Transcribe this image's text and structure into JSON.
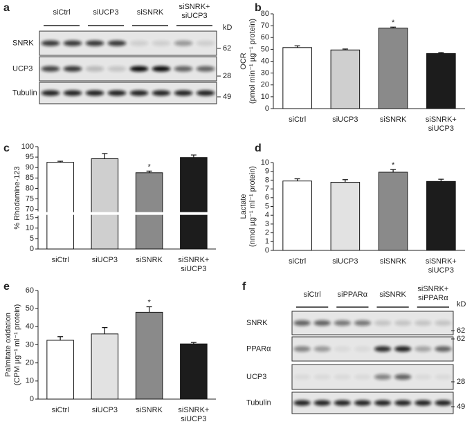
{
  "blots": [
    {
      "panel_label": "a",
      "groups": [
        "siCtrl",
        "siUCP3",
        "siSNRK",
        "siSNRK+ siUCP3"
      ],
      "rows": [
        "SNRK",
        "UCP3",
        "Tubulin"
      ],
      "unit": "kD",
      "markers": [
        62,
        28,
        49
      ]
    },
    {
      "panel_label": "f",
      "groups": [
        "siCtrl",
        "siPPARα",
        "siSNRK",
        "siSNRK+ siPPARα"
      ],
      "rows": [
        "SNRK",
        "PPARα",
        "UCP3",
        "Tubulin"
      ],
      "unit": "kD",
      "markers": [
        62,
        62,
        28,
        49
      ]
    }
  ],
  "chart_data": [
    {
      "type": "bar",
      "panel_label": "b",
      "categories": [
        "siCtrl",
        "siUCP3",
        "siSNRK",
        "siSNRK+ siUCP3"
      ],
      "values": [
        51.5,
        49.5,
        68,
        46.5
      ],
      "errors": [
        1.5,
        0.8,
        0.8,
        0.8
      ],
      "significance": [
        null,
        null,
        "*",
        null
      ],
      "colors": [
        "#ffffff",
        "#cfcfcf",
        "#8a8a8a",
        "#1c1c1c"
      ],
      "y_label": [
        "OCR",
        "(pmol min⁻¹ µg⁻¹ protein)"
      ],
      "ylim": [
        0,
        80
      ],
      "yticks": [
        0,
        10,
        20,
        30,
        40,
        50,
        60,
        70,
        80
      ]
    },
    {
      "type": "bar",
      "panel_label": "c",
      "categories": [
        "siCtrl",
        "siUCP3",
        "siSNRK",
        "siSNRK+ siUCP3"
      ],
      "values": [
        92.5,
        94.2,
        87.5,
        94.8
      ],
      "errors": [
        0.5,
        2.5,
        0.8,
        1.2
      ],
      "significance": [
        null,
        null,
        "*",
        null
      ],
      "colors": [
        "#ffffff",
        "#cfcfcf",
        "#8a8a8a",
        "#1c1c1c"
      ],
      "y_label": [
        "% Rhodamine-123"
      ],
      "ylim": [
        0,
        100
      ],
      "ybreak": [
        16,
        69
      ],
      "yticks": [
        0,
        5,
        10,
        15,
        70,
        75,
        80,
        85,
        90,
        95,
        100
      ]
    },
    {
      "type": "bar",
      "panel_label": "d",
      "categories": [
        "siCtrl",
        "siUCP3",
        "siSNRK",
        "siSNRK+ siUCP3"
      ],
      "values": [
        7.9,
        7.75,
        8.9,
        7.85
      ],
      "errors": [
        0.25,
        0.3,
        0.3,
        0.25
      ],
      "significance": [
        null,
        null,
        "*",
        null
      ],
      "colors": [
        "#ffffff",
        "#e2e2e2",
        "#8a8a8a",
        "#1c1c1c"
      ],
      "y_label": [
        "Lactate",
        "(nmol µg⁻¹ ml⁻¹ protein)"
      ],
      "ylim": [
        0,
        10
      ],
      "yticks": [
        0,
        1,
        2,
        3,
        4,
        5,
        6,
        7,
        8,
        9,
        10
      ]
    },
    {
      "type": "bar",
      "panel_label": "e",
      "categories": [
        "siCtrl",
        "siUCP3",
        "siSNRK",
        "siSNRK+ siUCP3"
      ],
      "values": [
        32.5,
        36,
        48,
        30.5
      ],
      "errors": [
        2,
        3.5,
        3,
        0.8
      ],
      "significance": [
        null,
        null,
        "*",
        null
      ],
      "colors": [
        "#ffffff",
        "#e2e2e2",
        "#8a8a8a",
        "#1c1c1c"
      ],
      "y_label": [
        "Palmitate oxidation",
        "(CPM µg⁻¹ ml⁻¹ protein)"
      ],
      "ylim": [
        0,
        60
      ],
      "yticks": [
        0,
        10,
        20,
        30,
        40,
        50,
        60
      ]
    }
  ]
}
